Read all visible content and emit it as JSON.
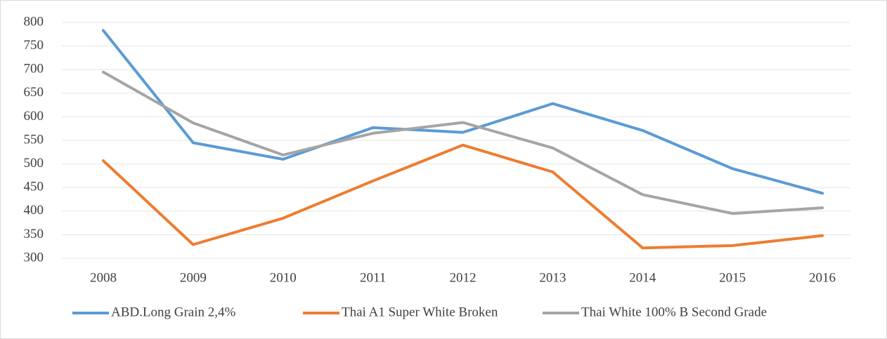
{
  "chart_data": {
    "type": "line",
    "categories": [
      "2008",
      "2009",
      "2010",
      "2011",
      "2012",
      "2013",
      "2014",
      "2015",
      "2016"
    ],
    "series": [
      {
        "name": "ABD.Long Grain 2,4%",
        "color": "#5b9bd5",
        "values": [
          783,
          545,
          510,
          577,
          567,
          628,
          571,
          490,
          438
        ]
      },
      {
        "name": "Thai A1 Super White Broken",
        "color": "#ed7d31",
        "values": [
          507,
          329,
          385,
          464,
          540,
          483,
          322,
          327,
          348
        ]
      },
      {
        "name": "Thai White 100% B Second Grade",
        "color": "#a5a5a5",
        "values": [
          695,
          587,
          519,
          565,
          588,
          534,
          435,
          395,
          407
        ]
      }
    ],
    "ylim": [
      300,
      800
    ],
    "yticks": [
      300,
      350,
      400,
      450,
      500,
      550,
      600,
      650,
      700,
      750,
      800
    ],
    "grid": true,
    "legend": "bottom"
  }
}
